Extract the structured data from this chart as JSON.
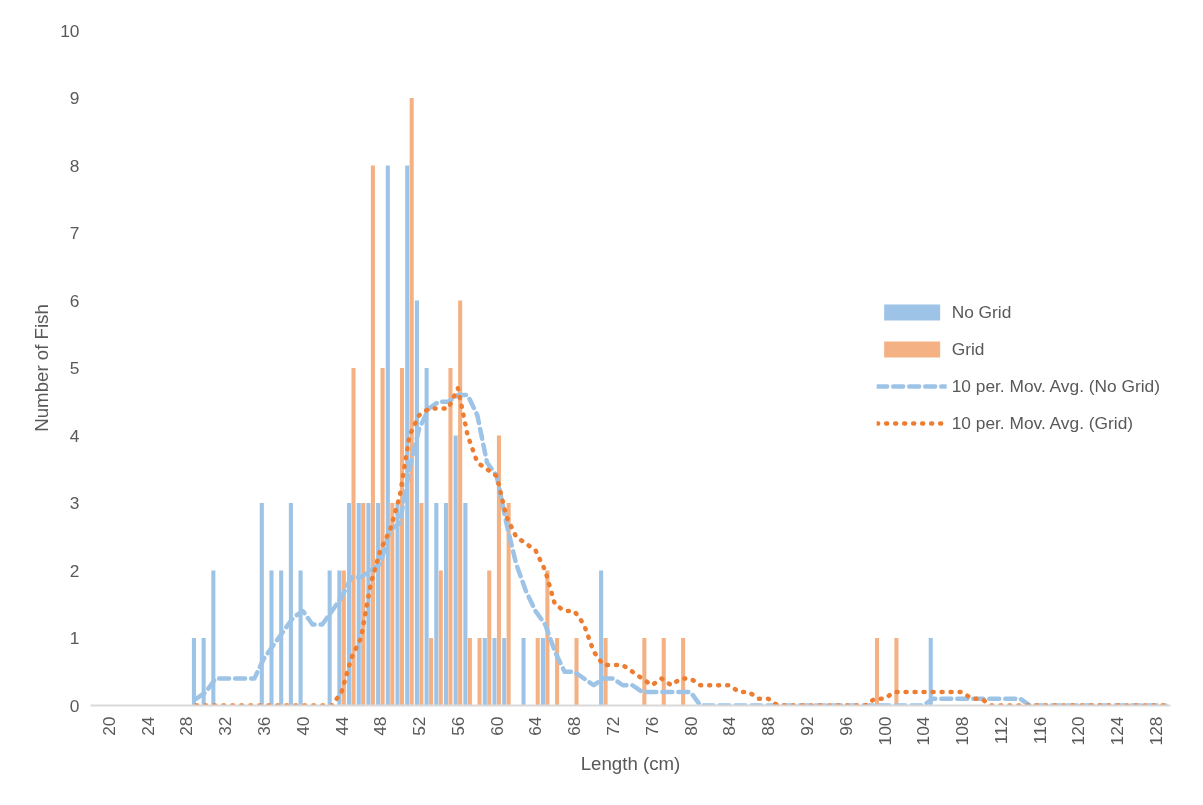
{
  "chart_data": {
    "type": "bar",
    "xlabel": "Length (cm)",
    "ylabel": "Number of Fish",
    "categories": [
      "20",
      null,
      null,
      null,
      "24",
      null,
      null,
      null,
      "28",
      null,
      null,
      null,
      "32",
      null,
      null,
      null,
      "36",
      null,
      null,
      null,
      "40",
      null,
      null,
      null,
      "44",
      null,
      null,
      null,
      "48",
      null,
      null,
      null,
      "52",
      null,
      null,
      null,
      "56",
      null,
      null,
      null,
      "60",
      null,
      null,
      null,
      "64",
      null,
      null,
      null,
      "68",
      null,
      null,
      null,
      "72",
      null,
      null,
      null,
      "76",
      null,
      null,
      null,
      "80",
      null,
      null,
      null,
      "84",
      null,
      null,
      null,
      "88",
      null,
      null,
      null,
      "92",
      null,
      null,
      null,
      "96",
      null,
      null,
      null,
      "100",
      null,
      null,
      null,
      "104",
      null,
      null,
      null,
      "108",
      null,
      null,
      null,
      "112",
      null,
      null,
      null,
      "116",
      null,
      null,
      null,
      "120",
      null,
      null,
      null,
      "124",
      null,
      null,
      null,
      "128",
      null
    ],
    "ylim": [
      0,
      10
    ],
    "yticks": [
      0,
      1,
      2,
      3,
      4,
      5,
      6,
      7,
      8,
      9,
      10
    ],
    "legend": "right",
    "series": [
      {
        "name": "No Grid",
        "color": "#9dc3e6",
        "values": [
          0,
          0,
          0,
          0,
          0,
          0,
          0,
          0,
          0,
          1,
          1,
          2,
          0,
          0,
          0,
          0,
          3,
          2,
          2,
          3,
          2,
          0,
          0,
          2,
          2,
          3,
          3,
          3,
          3,
          8,
          3,
          8,
          6,
          5,
          3,
          3,
          4,
          3,
          0,
          1,
          1,
          1,
          0,
          1,
          0,
          1,
          0,
          0,
          0,
          0,
          0,
          2,
          0,
          0,
          0,
          0,
          0,
          0,
          0,
          0,
          0,
          0,
          0,
          0,
          0,
          0,
          0,
          0,
          0,
          0,
          0,
          0,
          0,
          0,
          0,
          0,
          0,
          0,
          0,
          0,
          0,
          0,
          0,
          0,
          0,
          1,
          0,
          0,
          0,
          0,
          0,
          0,
          0,
          0,
          0,
          0,
          0,
          0,
          0,
          0,
          0,
          0,
          0,
          0,
          0,
          0,
          0,
          0,
          0,
          0
        ]
      },
      {
        "name": "Grid",
        "color": "#f4b183",
        "values": [
          0,
          0,
          0,
          0,
          0,
          0,
          0,
          0,
          0,
          0,
          0,
          0,
          0,
          0,
          0,
          0,
          0,
          0,
          0,
          0,
          0,
          0,
          0,
          0,
          2,
          5,
          3,
          8,
          5,
          3,
          5,
          9,
          3,
          1,
          2,
          5,
          6,
          1,
          1,
          2,
          4,
          3,
          0,
          0,
          1,
          2,
          1,
          0,
          1,
          0,
          0,
          1,
          0,
          0,
          0,
          1,
          0,
          1,
          0,
          1,
          0,
          0,
          0,
          0,
          0,
          0,
          0,
          0,
          0,
          0,
          0,
          0,
          0,
          0,
          0,
          0,
          0,
          0,
          0,
          1,
          0,
          1,
          0,
          0,
          0,
          0,
          0,
          0,
          0,
          0,
          0,
          0,
          0,
          0,
          0,
          0,
          0,
          0,
          0,
          0,
          0,
          0,
          0,
          0,
          0,
          0,
          0,
          0,
          0,
          0
        ]
      },
      {
        "name": "10 per. Mov. Avg. (No Grid)",
        "type": "line",
        "line_style": "dashed",
        "color": "#9dc3e6",
        "values": [
          null,
          null,
          null,
          null,
          null,
          null,
          null,
          null,
          null,
          0.1,
          0.2,
          0.4,
          0.4,
          0.4,
          0.4,
          0.4,
          0.7,
          0.9,
          1.1,
          1.3,
          1.4,
          1.2,
          1.2,
          1.4,
          1.6,
          1.9,
          1.9,
          2.0,
          2.1,
          2.6,
          2.7,
          3.5,
          4.1,
          4.4,
          4.5,
          4.5,
          4.6,
          4.6,
          4.3,
          3.6,
          3.4,
          2.7,
          2.1,
          1.7,
          1.4,
          1.2,
          0.8,
          0.5,
          0.5,
          0.4,
          0.3,
          0.4,
          0.4,
          0.3,
          0.3,
          0.2,
          0.2,
          0.2,
          0.2,
          0.2,
          0.2,
          0,
          0,
          0,
          0,
          0,
          0,
          0,
          0,
          0,
          0,
          0,
          0,
          0,
          0,
          0,
          0,
          0,
          0,
          0,
          0,
          0,
          0,
          0,
          0,
          0.1,
          0.1,
          0.1,
          0.1,
          0.1,
          0.1,
          0.1,
          0.1,
          0.1,
          0.1,
          0,
          0,
          0,
          0,
          0,
          0,
          0,
          0,
          0,
          0,
          0,
          0,
          0,
          0,
          0
        ]
      },
      {
        "name": "10 per. Mov. Avg. (Grid)",
        "type": "line",
        "line_style": "dotted",
        "color": "#ed7d31",
        "values": [
          null,
          null,
          null,
          null,
          null,
          null,
          null,
          null,
          null,
          0,
          0,
          0,
          0,
          0,
          0,
          0,
          0,
          0,
          0,
          0,
          0,
          0,
          0,
          0,
          0.2,
          0.7,
          1.0,
          1.8,
          2.3,
          2.6,
          3.1,
          4.0,
          4.3,
          4.4,
          4.4,
          4.4,
          4.7,
          4.0,
          3.6,
          3.5,
          3.4,
          2.8,
          2.5,
          2.4,
          2.3,
          2.0,
          1.5,
          1.4,
          1.4,
          1.2,
          0.8,
          0.6,
          0.6,
          0.6,
          0.5,
          0.4,
          0.3,
          0.4,
          0.3,
          0.4,
          0.4,
          0.3,
          0.3,
          0.3,
          0.3,
          0.2,
          0.2,
          0.1,
          0.1,
          0,
          0,
          0,
          0,
          0,
          0,
          0,
          0,
          0,
          0,
          0.1,
          0.1,
          0.2,
          0.2,
          0.2,
          0.2,
          0.2,
          0.2,
          0.2,
          0.2,
          0.1,
          0.1,
          0,
          0,
          0,
          0,
          0,
          0,
          0,
          0,
          0,
          0,
          0,
          0,
          0,
          0,
          0,
          0,
          0,
          0,
          0
        ]
      }
    ]
  }
}
